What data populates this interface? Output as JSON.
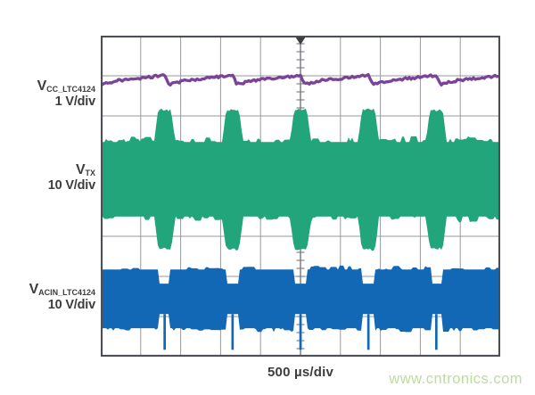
{
  "figure": {
    "time_label": "500 µs/div",
    "watermark": {
      "text": "www.cntronics.com",
      "color": "#bddc9e"
    },
    "channels": [
      {
        "base": "V",
        "sub": "CC_LTC4124",
        "scale": "1 V/div"
      },
      {
        "base": "V",
        "sub": "TX",
        "scale": "10 V/div"
      },
      {
        "base": "V",
        "sub": "ACIN_LTC4124",
        "scale": "10 V/div"
      }
    ]
  },
  "chart_data": {
    "type": "line",
    "subtype": "oscilloscope",
    "xlabel": "500 µs/div",
    "timebase_us_per_div": 500,
    "h_divisions": 10,
    "v_divisions": 8,
    "x_range_us": [
      -2500,
      2500
    ],
    "trigger": {
      "t_us": 0,
      "marker": "top-center-triangle"
    },
    "event_times_us": [
      -1700,
      -850,
      0,
      850,
      1700
    ],
    "burst_period_us": 850,
    "grid": {
      "show": true,
      "color": "#97999e",
      "center_line_color": "#75787d",
      "border_color": "#4c4f55",
      "background": "#ffffff"
    },
    "series": [
      {
        "name": "VCC_LTC4124",
        "color": "#7b4398",
        "volts_per_div": 1,
        "style": "trace",
        "center_offset_div": 2.9,
        "ripple": {
          "droop_v": 0.22,
          "droop_fall_us": 55,
          "recover_v": 0.09,
          "recover_us": 200
        }
      },
      {
        "name": "VTX",
        "color": "#23a57c",
        "volts_per_div": 10,
        "style": "am-envelope",
        "center_offset_div": 0.42,
        "steady_amplitude_v": 9.3,
        "burst_amplitude_v": 17.3,
        "burst_width_us": 260,
        "burst_flat_fraction": 0.62
      },
      {
        "name": "VACIN_LTC4124",
        "color": "#1268b5",
        "volts_per_div": 10,
        "style": "band-with-notches",
        "center_offset_div": -2.56,
        "amplitude_v": 7.3,
        "notch_width_us": 140,
        "notch_depth_v": 3.5,
        "spike_v": -12.7,
        "spike_width_us": 30
      }
    ]
  }
}
